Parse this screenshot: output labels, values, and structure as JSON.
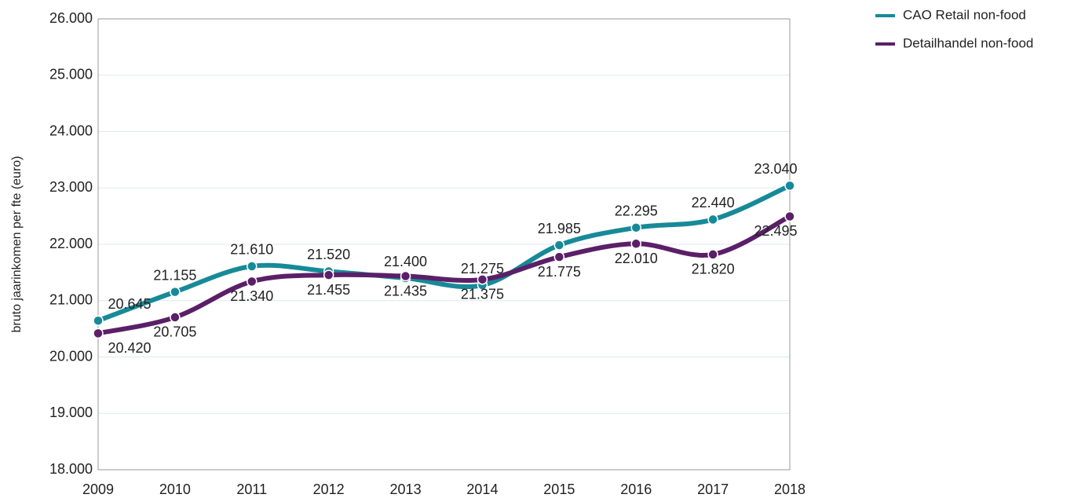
{
  "chart_data": {
    "type": "line",
    "y_label": "bruto jaarinkomen per fte (euro)",
    "categories": [
      "2009",
      "2010",
      "2011",
      "2012",
      "2013",
      "2014",
      "2015",
      "2016",
      "2017",
      "2018"
    ],
    "series": [
      {
        "name": "CAO Retail non-food",
        "color": "#178a98",
        "values": [
          20645,
          21155,
          21610,
          21520,
          21400,
          21275,
          21985,
          22295,
          22440,
          23040
        ],
        "value_labels": [
          "20.645",
          "21.155",
          "21.610",
          "21.520",
          "21.400",
          "21.275",
          "21.985",
          "22.295",
          "22.440",
          "23.040"
        ]
      },
      {
        "name": "Detailhandel non-food",
        "color": "#5b1f68",
        "values": [
          20420,
          20705,
          21340,
          21455,
          21435,
          21375,
          21775,
          22010,
          21820,
          22495
        ],
        "value_labels": [
          "20.420",
          "20.705",
          "21.340",
          "21.455",
          "21.435",
          "21.375",
          "21.775",
          "22.010",
          "21.820",
          "22.495"
        ]
      }
    ],
    "ylim": [
      18000,
      26000
    ],
    "yticks": [
      {
        "value": 18000,
        "label": "18.000"
      },
      {
        "value": 19000,
        "label": "19.000"
      },
      {
        "value": 20000,
        "label": "20.000"
      },
      {
        "value": 21000,
        "label": "21.000"
      },
      {
        "value": 22000,
        "label": "22.000"
      },
      {
        "value": 23000,
        "label": "23.000"
      },
      {
        "value": 24000,
        "label": "24.000"
      },
      {
        "value": 25000,
        "label": "25.000"
      },
      {
        "value": 26000,
        "label": "26.000"
      }
    ],
    "grid": true,
    "legend": "top-right"
  }
}
